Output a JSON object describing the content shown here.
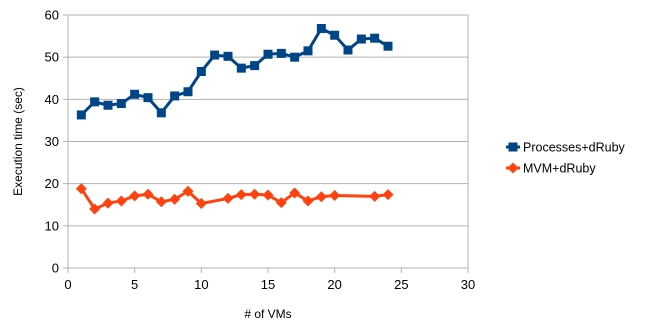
{
  "chart_data": {
    "type": "scatter",
    "xlabel": "# of VMs",
    "ylabel": "Execution time (sec)",
    "xlim": [
      0,
      30
    ],
    "ylim": [
      0,
      60
    ],
    "x_ticks": [
      "0",
      "5",
      "10",
      "15",
      "20",
      "25",
      "30"
    ],
    "y_ticks": [
      "0",
      "10",
      "20",
      "30",
      "40",
      "50",
      "60"
    ],
    "grid": "horizontal",
    "legend_position": "right",
    "lines": "straight",
    "series": [
      {
        "name": "Processes+dRuby",
        "color": "#004586",
        "marker": "square",
        "points": [
          [
            1,
            36.3
          ],
          [
            2,
            39.4
          ],
          [
            3,
            38.6
          ],
          [
            4,
            39.0
          ],
          [
            5,
            41.2
          ],
          [
            6,
            40.4
          ],
          [
            7,
            36.8
          ],
          [
            8,
            40.8
          ],
          [
            9,
            41.8
          ],
          [
            10,
            46.6
          ],
          [
            11,
            50.5
          ],
          [
            12,
            50.2
          ],
          [
            13,
            47.4
          ],
          [
            14,
            48.0
          ],
          [
            15,
            50.7
          ],
          [
            16,
            50.9
          ],
          [
            17,
            50.0
          ],
          [
            18,
            51.5
          ],
          [
            19,
            56.8
          ],
          [
            20,
            55.2
          ],
          [
            21,
            51.7
          ],
          [
            22,
            54.3
          ],
          [
            23,
            54.5
          ],
          [
            24,
            52.6
          ]
        ]
      },
      {
        "name": "MVM+dRuby",
        "color": "#ff420e",
        "marker": "diamond",
        "points": [
          [
            1,
            18.8
          ],
          [
            2,
            14.0
          ],
          [
            3,
            15.4
          ],
          [
            4,
            15.9
          ],
          [
            5,
            17.1
          ],
          [
            6,
            17.5
          ],
          [
            7,
            15.7
          ],
          [
            8,
            16.3
          ],
          [
            9,
            18.2
          ],
          [
            10,
            15.3
          ],
          [
            12,
            16.5
          ],
          [
            13,
            17.4
          ],
          [
            14,
            17.5
          ],
          [
            15,
            17.3
          ],
          [
            16,
            15.5
          ],
          [
            17,
            17.8
          ],
          [
            18,
            15.9
          ],
          [
            19,
            16.9
          ],
          [
            20,
            17.2
          ],
          [
            23,
            17.0
          ],
          [
            24,
            17.4
          ]
        ]
      }
    ]
  }
}
